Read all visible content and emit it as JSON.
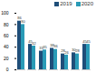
{
  "chart_data": {
    "type": "bar",
    "categories": [
      null,
      null,
      null,
      null,
      null,
      null,
      null
    ],
    "series": [
      {
        "name": "2019",
        "color": "#1f4e79",
        "values": [
          86,
          45,
          33,
          38,
          28,
          30,
          45
        ]
      },
      {
        "name": "2020",
        "color": "#2a9bb7",
        "values": [
          80,
          42,
          35,
          36,
          26,
          28,
          45
        ]
      }
    ],
    "ylim": [
      0,
      100
    ],
    "yticks": [
      0,
      20,
      40,
      60,
      80,
      100
    ],
    "data_labels": true,
    "legend": "top-right",
    "tick_labels": "y"
  }
}
